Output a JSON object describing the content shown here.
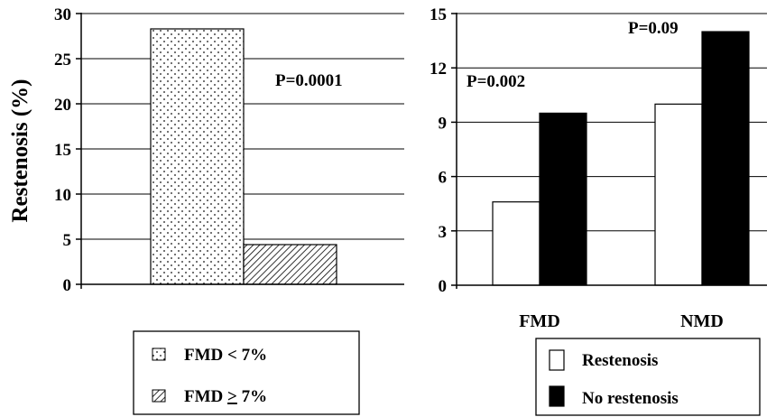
{
  "chart_data": [
    {
      "type": "bar",
      "ylabel": "Restenosis (%)",
      "ylim": [
        0,
        30
      ],
      "yticks": [
        "0",
        "5",
        "10",
        "15",
        "20",
        "25",
        "30"
      ],
      "grid": true,
      "series": [
        {
          "name": "FMD < 7%",
          "value": 28.3,
          "pattern": "dots"
        },
        {
          "name": "FMD ≥ 7%",
          "value": 4.4,
          "pattern": "hatch"
        }
      ],
      "annotations": [
        "P=0.0001"
      ],
      "legend": {
        "placement": "bottom",
        "items": [
          {
            "pre": "FMD < 7%",
            "ul": "",
            "post": ""
          },
          {
            "pre": "FMD ",
            "ul": ">",
            "post": " 7%"
          }
        ]
      }
    },
    {
      "type": "bar",
      "ylim": [
        0,
        15
      ],
      "yticks": [
        "0",
        "3",
        "6",
        "9",
        "12",
        "15"
      ],
      "grid": true,
      "categories": [
        "FMD",
        "NMD"
      ],
      "series": [
        {
          "name": "Restenosis",
          "values": [
            4.6,
            10.0
          ],
          "color": "#ffffff"
        },
        {
          "name": "No restenosis",
          "values": [
            9.5,
            14.0
          ],
          "color": "#000000"
        }
      ],
      "annotations": [
        "P=0.002",
        "P=0.09"
      ],
      "legend": {
        "placement": "bottom",
        "items": [
          "Restenosis",
          "No restenosis"
        ]
      }
    }
  ]
}
